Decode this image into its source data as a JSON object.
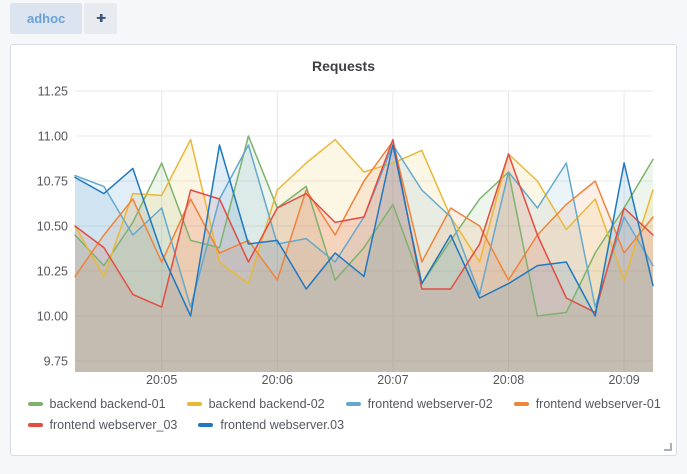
{
  "tabs": {
    "adhoc_label": "adhoc",
    "add_label": "+"
  },
  "panel": {
    "title": "Requests"
  },
  "colors": {
    "page_bg": "#f6f7f9",
    "panel_bg": "#ffffff",
    "panel_border": "#d7dbe3",
    "grid": "#e8e8e8",
    "axis_text": "#55575e",
    "tab_bg": "#dce4ef",
    "tab_text": "#6ba1d6"
  },
  "chart_data": {
    "type": "line",
    "title": "Requests",
    "xlabel": "",
    "ylabel": "",
    "grid": true,
    "legend_position": "bottom",
    "x_start_time": "20:04:15",
    "x_interval_seconds": 15,
    "x_range_seconds": 300,
    "x_tick_labels": [
      "20:05",
      "20:06",
      "20:07",
      "20:08",
      "20:09"
    ],
    "x_tick_seconds": [
      45,
      105,
      165,
      225,
      285
    ],
    "y_tick_labels": [
      "9.75",
      "10.00",
      "10.25",
      "10.50",
      "10.75",
      "11.00",
      "11.25"
    ],
    "y_tick_values": [
      9.75,
      10.0,
      10.25,
      10.5,
      10.75,
      11.0,
      11.25
    ],
    "ylim": [
      9.68,
      11.3
    ],
    "fill_opacity": 0.13,
    "series": [
      {
        "name": "backend backend-01",
        "color": "#7EB26D",
        "values": [
          10.45,
          10.28,
          10.52,
          10.85,
          10.42,
          10.38,
          11.0,
          10.6,
          10.72,
          10.2,
          10.38,
          10.62,
          10.18,
          10.42,
          10.65,
          10.8,
          10.0,
          10.02,
          10.35,
          10.6,
          10.87
        ]
      },
      {
        "name": "backend backend-02",
        "color": "#EAB839",
        "values": [
          10.5,
          10.22,
          10.68,
          10.67,
          10.98,
          10.3,
          10.18,
          10.7,
          10.85,
          10.98,
          10.8,
          10.85,
          10.92,
          10.55,
          10.3,
          10.9,
          10.75,
          10.48,
          10.65,
          10.2,
          10.7
        ]
      },
      {
        "name": "frontend webserver-02",
        "color": "#64A9CD",
        "values": [
          10.78,
          10.72,
          10.45,
          10.6,
          10.05,
          10.65,
          10.95,
          10.4,
          10.43,
          10.3,
          10.55,
          10.95,
          10.7,
          10.55,
          10.12,
          10.8,
          10.6,
          10.85,
          10.05,
          10.55,
          10.28
        ]
      },
      {
        "name": "frontend webserver-01",
        "color": "#EF843C",
        "values": [
          10.22,
          10.45,
          10.65,
          10.3,
          10.65,
          10.35,
          10.42,
          10.2,
          10.7,
          10.45,
          10.75,
          10.97,
          10.3,
          10.6,
          10.5,
          10.2,
          10.45,
          10.62,
          10.75,
          10.35,
          10.55
        ]
      },
      {
        "name": "frontend webserver_03",
        "color": "#E24D42",
        "values": [
          10.5,
          10.38,
          10.12,
          10.05,
          10.7,
          10.65,
          10.3,
          10.6,
          10.68,
          10.52,
          10.55,
          10.98,
          10.15,
          10.15,
          10.4,
          10.9,
          10.45,
          10.1,
          10.02,
          10.6,
          10.45
        ]
      },
      {
        "name": "frontend webserver.03",
        "color": "#1F78C1",
        "values": [
          10.77,
          10.68,
          10.82,
          10.35,
          10.0,
          10.95,
          10.4,
          10.42,
          10.15,
          10.35,
          10.22,
          10.95,
          10.18,
          10.45,
          10.1,
          10.18,
          10.28,
          10.3,
          10.0,
          10.85,
          10.17
        ]
      }
    ]
  }
}
